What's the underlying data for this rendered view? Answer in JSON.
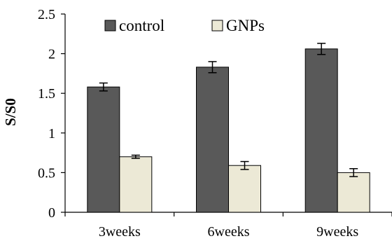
{
  "chart_data": {
    "type": "bar",
    "title": "",
    "xlabel": "",
    "ylabel": "S/S0",
    "ylim": [
      0,
      2.5
    ],
    "yticks": [
      "0",
      "0.5",
      "1",
      "1.5",
      "2",
      "2.5"
    ],
    "grid": false,
    "legend_position": "top",
    "categories": [
      "3weeks",
      "6weeks",
      "9weeks"
    ],
    "series": [
      {
        "name": "control",
        "color": "#595959",
        "values": [
          1.58,
          1.83,
          2.06
        ],
        "errors": [
          0.05,
          0.07,
          0.07
        ]
      },
      {
        "name": "GNPs",
        "color": "#ece9d6",
        "values": [
          0.7,
          0.59,
          0.5
        ],
        "errors": [
          0.02,
          0.05,
          0.05
        ]
      }
    ]
  }
}
